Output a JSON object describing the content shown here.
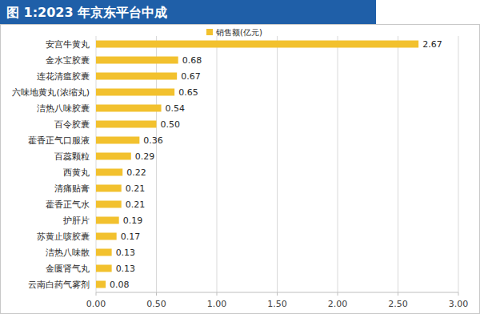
{
  "chart_data": {
    "type": "bar",
    "orientation": "horizontal",
    "title": "图 1:2023 年京东平台中成",
    "categories": [
      "安宫牛黄丸",
      "金水宝胶囊",
      "连花清瘟胶囊",
      "六味地黄丸(浓缩丸)",
      "洁热八味胶囊",
      "百令胶囊",
      "藿香正气口服液",
      "百蕊颗粒",
      "西黄丸",
      "清痛贴膏",
      "藿香正气水",
      "护肝片",
      "苏黄止咳胶囊",
      "洁热八味散",
      "金匮肾气丸",
      "云南白药气雾剂"
    ],
    "series": [
      {
        "name": "销售额(亿元)",
        "color": "#f2c12e",
        "values": [
          2.67,
          0.68,
          0.67,
          0.65,
          0.54,
          0.5,
          0.36,
          0.29,
          0.22,
          0.21,
          0.21,
          0.19,
          0.17,
          0.13,
          0.13,
          0.08
        ],
        "value_labels": [
          "2.67",
          "0.68",
          "0.67",
          "0.65",
          "0.54",
          "0.50",
          "0.36",
          "0.29",
          "0.22",
          "0.21",
          "0.21",
          "0.19",
          "0.17",
          "0.13",
          "0.13",
          "0.08"
        ]
      }
    ],
    "xlim": [
      0,
      3
    ],
    "xticks": [
      {
        "value": 0,
        "label": "0.00"
      },
      {
        "value": 0.5,
        "label": "0.50"
      },
      {
        "value": 1,
        "label": "1.00"
      },
      {
        "value": 1.5,
        "label": "1.50"
      },
      {
        "value": 2,
        "label": "2.00"
      },
      {
        "value": 2.5,
        "label": "2.50"
      },
      {
        "value": 3,
        "label": "3.00"
      }
    ],
    "grid": true,
    "data_labels": true,
    "legend": "top"
  }
}
